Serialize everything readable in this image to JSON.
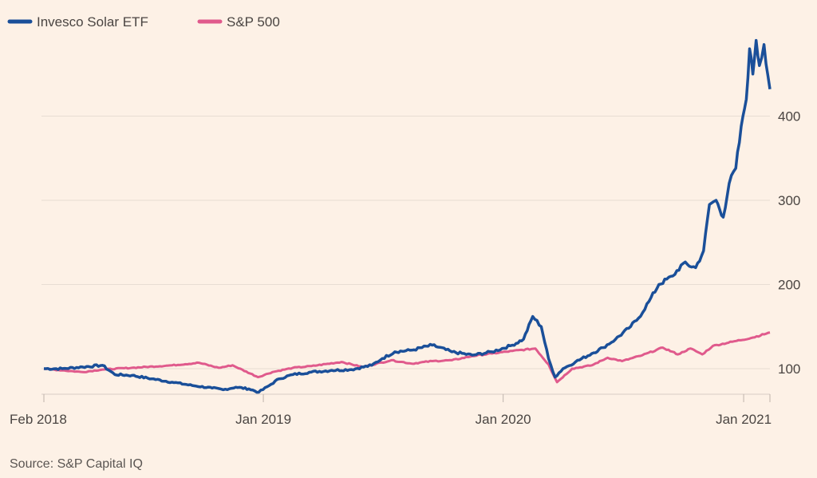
{
  "chart_data": {
    "type": "line",
    "legend_position": "top-left",
    "grid": true,
    "x_axis": {
      "ticks": [
        "Feb 2018",
        "Jan 2019",
        "Jan 2020",
        "Jan 2021"
      ],
      "range": [
        "2018-02",
        "2021-02"
      ]
    },
    "y_axis": {
      "position": "right",
      "ticks": [
        100,
        200,
        300,
        400
      ],
      "range": [
        70,
        500
      ]
    },
    "source": "Source: S&P Capital IQ",
    "colors": {
      "Invesco Solar ETF": "#1a4f99",
      "S&P 500": "#e05a8c"
    },
    "series": [
      {
        "name": "Invesco Solar ETF",
        "points": [
          [
            "2018-02-01",
            100
          ],
          [
            "2018-03-01",
            100
          ],
          [
            "2018-04-01",
            102
          ],
          [
            "2018-05-01",
            104
          ],
          [
            "2018-05-20",
            93
          ],
          [
            "2018-06-15",
            92
          ],
          [
            "2018-07-15",
            88
          ],
          [
            "2018-08-15",
            84
          ],
          [
            "2018-09-15",
            80
          ],
          [
            "2018-10-15",
            77
          ],
          [
            "2018-11-01",
            75
          ],
          [
            "2018-11-20",
            78
          ],
          [
            "2018-12-10",
            76
          ],
          [
            "2018-12-25",
            72
          ],
          [
            "2019-01-10",
            80
          ],
          [
            "2019-01-25",
            88
          ],
          [
            "2019-02-15",
            93
          ],
          [
            "2019-03-15",
            96
          ],
          [
            "2019-04-15",
            98
          ],
          [
            "2019-05-15",
            99
          ],
          [
            "2019-06-15",
            104
          ],
          [
            "2019-07-01",
            112
          ],
          [
            "2019-07-20",
            120
          ],
          [
            "2019-08-15",
            122
          ],
          [
            "2019-09-15",
            128
          ],
          [
            "2019-10-15",
            120
          ],
          [
            "2019-11-15",
            116
          ],
          [
            "2019-12-15",
            120
          ],
          [
            "2020-01-15",
            128
          ],
          [
            "2020-02-01",
            135
          ],
          [
            "2020-02-15",
            162
          ],
          [
            "2020-02-28",
            150
          ],
          [
            "2020-03-10",
            112
          ],
          [
            "2020-03-20",
            90
          ],
          [
            "2020-04-01",
            100
          ],
          [
            "2020-04-20",
            108
          ],
          [
            "2020-05-15",
            118
          ],
          [
            "2020-06-01",
            125
          ],
          [
            "2020-06-20",
            135
          ],
          [
            "2020-07-10",
            148
          ],
          [
            "2020-07-25",
            160
          ],
          [
            "2020-08-10",
            180
          ],
          [
            "2020-08-25",
            200
          ],
          [
            "2020-09-15",
            210
          ],
          [
            "2020-10-01",
            225
          ],
          [
            "2020-10-20",
            220
          ],
          [
            "2020-11-01",
            240
          ],
          [
            "2020-11-10",
            295
          ],
          [
            "2020-11-20",
            300
          ],
          [
            "2020-12-01",
            280
          ],
          [
            "2020-12-10",
            320
          ],
          [
            "2020-12-20",
            338
          ],
          [
            "2020-12-31",
            400
          ],
          [
            "2021-01-05",
            420
          ],
          [
            "2021-01-10",
            480
          ],
          [
            "2021-01-15",
            450
          ],
          [
            "2021-01-20",
            490
          ],
          [
            "2021-01-25",
            460
          ],
          [
            "2021-02-01",
            485
          ],
          [
            "2021-02-10",
            432
          ]
        ]
      },
      {
        "name": "S&P 500",
        "points": [
          [
            "2018-02-01",
            100
          ],
          [
            "2018-03-01",
            98
          ],
          [
            "2018-04-01",
            96
          ],
          [
            "2018-05-01",
            99
          ],
          [
            "2018-06-15",
            101
          ],
          [
            "2018-08-15",
            104
          ],
          [
            "2018-09-25",
            107
          ],
          [
            "2018-10-25",
            101
          ],
          [
            "2018-11-15",
            104
          ],
          [
            "2018-12-24",
            90
          ],
          [
            "2019-01-15",
            96
          ],
          [
            "2019-02-15",
            101
          ],
          [
            "2019-03-15",
            103
          ],
          [
            "2019-04-30",
            108
          ],
          [
            "2019-06-01",
            102
          ],
          [
            "2019-07-15",
            110
          ],
          [
            "2019-08-15",
            106
          ],
          [
            "2019-09-15",
            109
          ],
          [
            "2019-10-15",
            110
          ],
          [
            "2019-11-15",
            115
          ],
          [
            "2019-12-15",
            118
          ],
          [
            "2020-01-15",
            121
          ],
          [
            "2020-02-19",
            124
          ],
          [
            "2020-03-10",
            105
          ],
          [
            "2020-03-23",
            84
          ],
          [
            "2020-04-15",
            100
          ],
          [
            "2020-05-15",
            104
          ],
          [
            "2020-06-08",
            113
          ],
          [
            "2020-06-30",
            109
          ],
          [
            "2020-07-31",
            116
          ],
          [
            "2020-08-31",
            125
          ],
          [
            "2020-09-23",
            117
          ],
          [
            "2020-10-12",
            124
          ],
          [
            "2020-10-30",
            117
          ],
          [
            "2020-11-15",
            127
          ],
          [
            "2020-12-15",
            132
          ],
          [
            "2021-01-15",
            137
          ],
          [
            "2021-02-10",
            143
          ]
        ]
      }
    ]
  }
}
